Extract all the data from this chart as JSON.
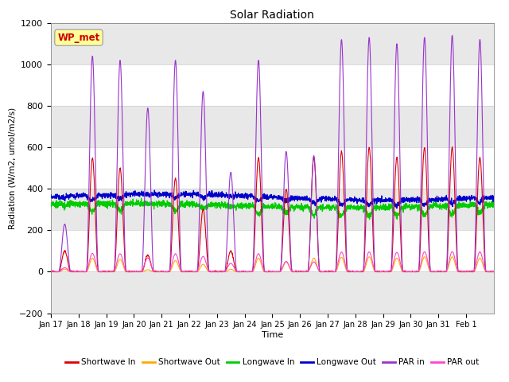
{
  "title": "Solar Radiation",
  "xlabel": "Time",
  "ylabel": "Radiation (W/m2, umol/m2/s)",
  "ylim": [
    -200,
    1200
  ],
  "xlim": [
    0,
    16
  ],
  "x_tick_labels": [
    "Jan 17",
    "Jan 18",
    "Jan 19",
    "Jan 20",
    "Jan 21",
    "Jan 22",
    "Jan 23",
    "Jan 24",
    "Jan 25",
    "Jan 26",
    "Jan 27",
    "Jan 28",
    "Jan 29",
    "Jan 30",
    "Jan 31",
    "Feb 1"
  ],
  "annotation_text": "WP_met",
  "annotation_color": "#cc0000",
  "annotation_bg": "#ffff99",
  "colors": {
    "shortwave_in": "#dd0000",
    "shortwave_out": "#ffaa00",
    "longwave_in": "#00cc00",
    "longwave_out": "#0000cc",
    "par_in": "#9933cc",
    "par_out": "#ff44cc"
  },
  "n_days": 16,
  "sw_peaks": [
    100,
    550,
    500,
    80,
    450,
    300,
    100,
    550,
    400,
    550,
    580,
    600,
    550,
    600,
    600,
    550
  ],
  "par_peaks": [
    230,
    1040,
    1020,
    790,
    1020,
    870,
    480,
    1020,
    580,
    560,
    1120,
    1130,
    1100,
    1130,
    1140,
    1120
  ],
  "lw_out_base": 360,
  "lw_in_base": 320
}
